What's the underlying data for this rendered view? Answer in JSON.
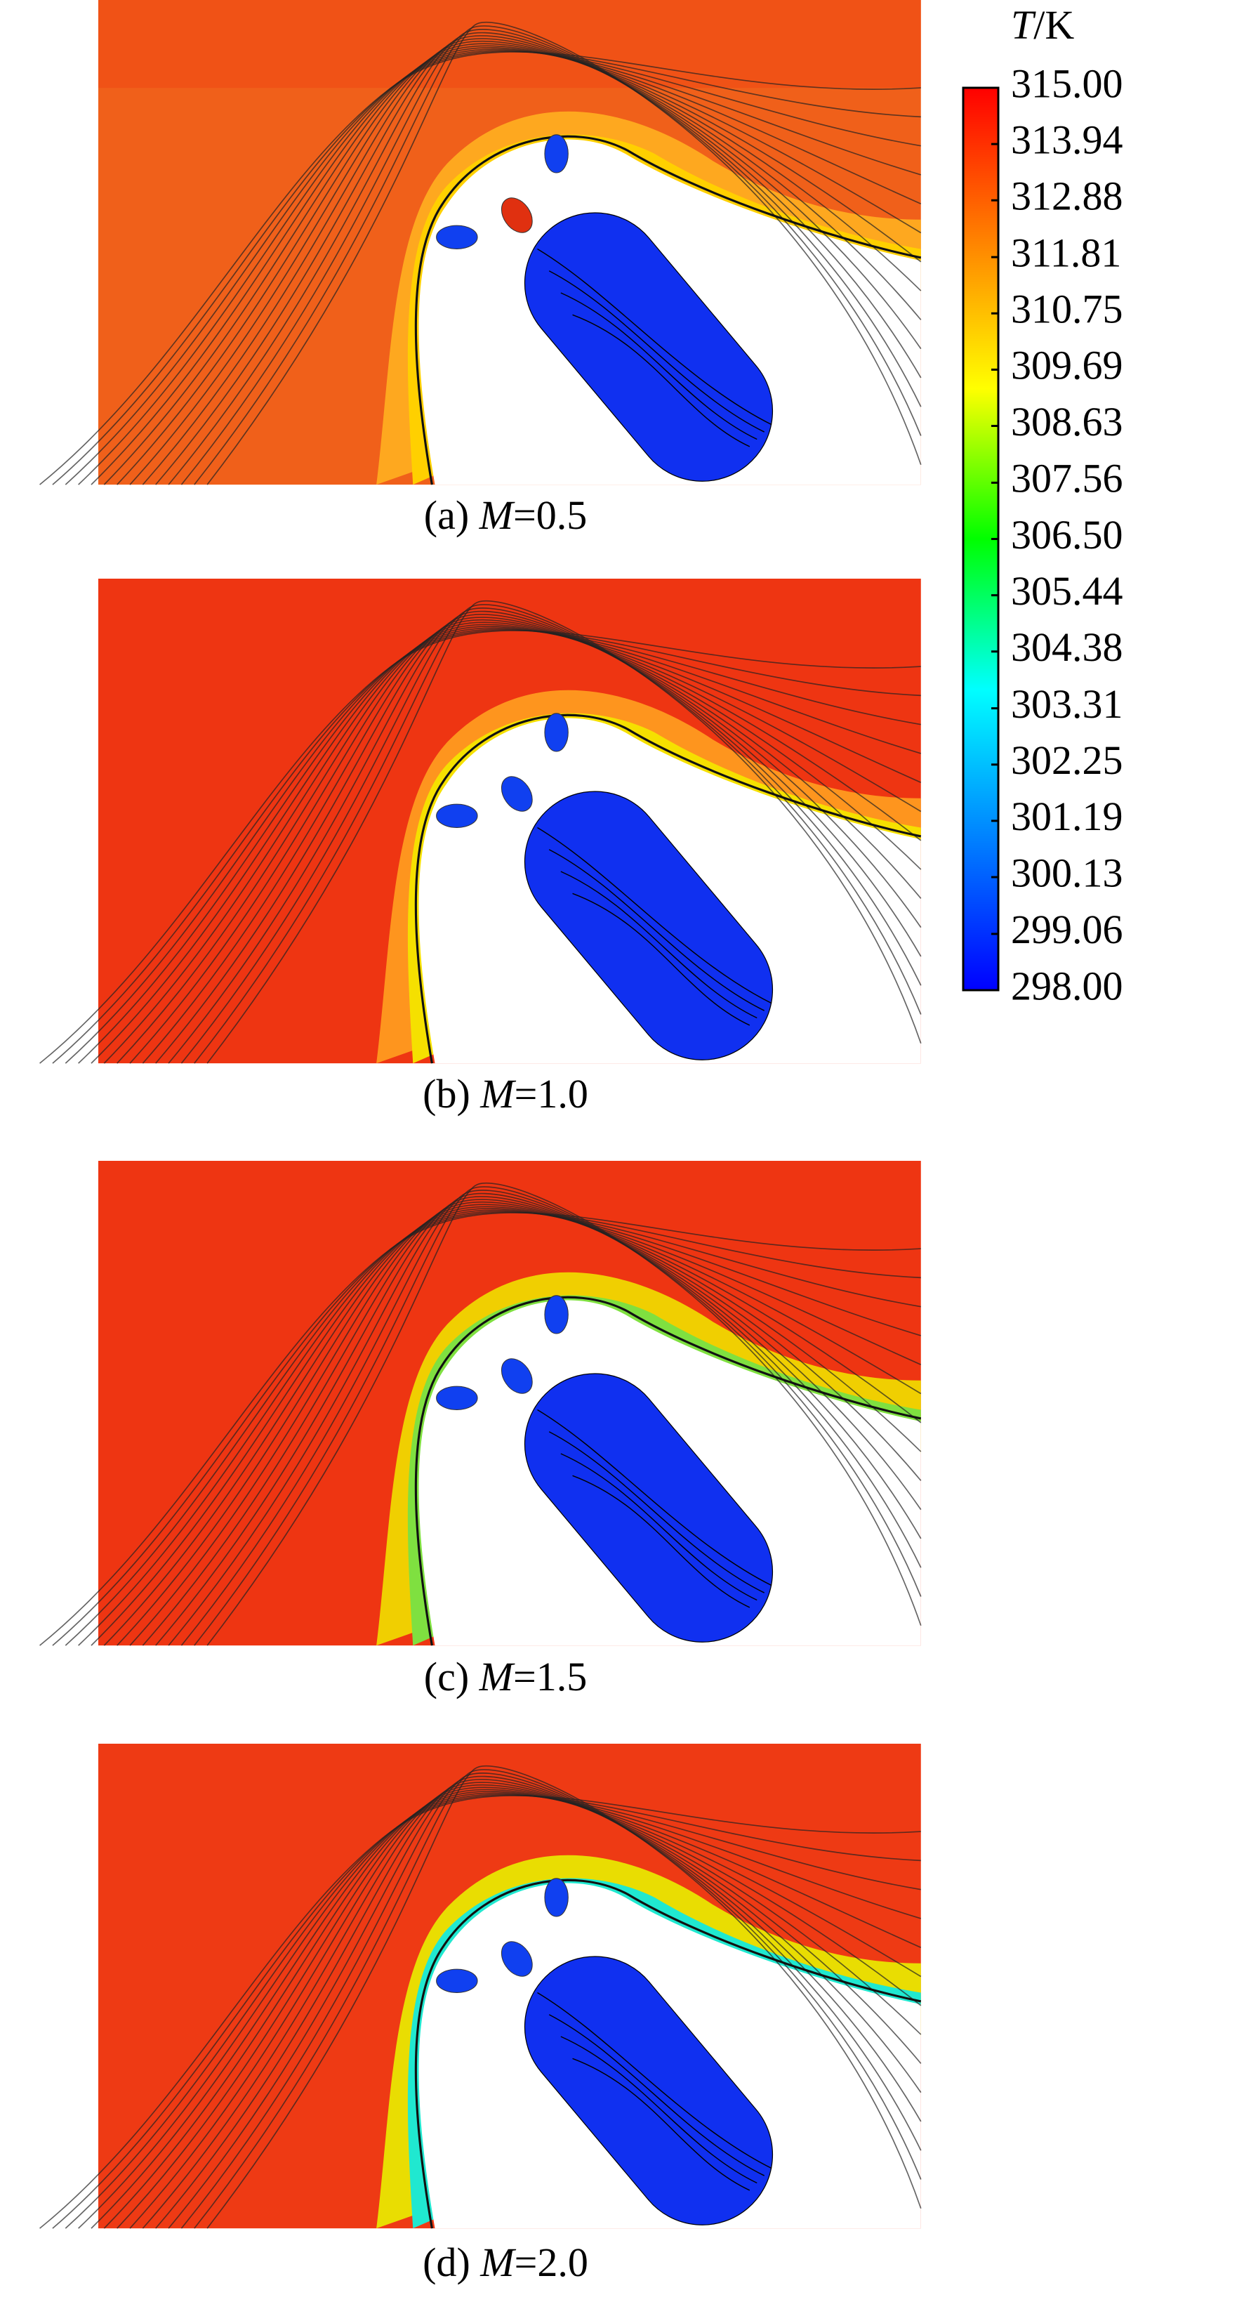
{
  "figure": {
    "colorbar": {
      "symbol": "T",
      "unit": "/K",
      "lim": [
        298,
        315
      ],
      "colors": [
        "#0000ff",
        "#0080ff",
        "#00ffff",
        "#00ff00",
        "#ffff00",
        "#ff8000",
        "#ff0000"
      ],
      "ticks": [
        {
          "value": 315,
          "label": "315.00"
        },
        {
          "value": 313.94,
          "label": "313.94"
        },
        {
          "value": 312.88,
          "label": "312.88"
        },
        {
          "value": 311.81,
          "label": "311.81"
        },
        {
          "value": 310.75,
          "label": "310.75"
        },
        {
          "value": 309.69,
          "label": "309.69"
        },
        {
          "value": 308.63,
          "label": "308.63"
        },
        {
          "value": 307.56,
          "label": "307.56"
        },
        {
          "value": 306.5,
          "label": "306.50"
        },
        {
          "value": 305.44,
          "label": "305.44"
        },
        {
          "value": 304.38,
          "label": "304.38"
        },
        {
          "value": 303.31,
          "label": "303.31"
        },
        {
          "value": 302.25,
          "label": "302.25"
        },
        {
          "value": 301.19,
          "label": "301.19"
        },
        {
          "value": 300.13,
          "label": "300.13"
        },
        {
          "value": 299.06,
          "label": "299.06"
        },
        {
          "value": 298,
          "label": "298.00"
        }
      ]
    },
    "panels": [
      {
        "label": "(a)",
        "symbol": "M",
        "value": "=0.5"
      },
      {
        "label": "(b)",
        "symbol": "M",
        "value": "=1.0"
      },
      {
        "label": "(c)",
        "symbol": "M",
        "value": "=1.5"
      },
      {
        "label": "(d)",
        "symbol": "M",
        "value": "=2.0"
      }
    ]
  }
}
